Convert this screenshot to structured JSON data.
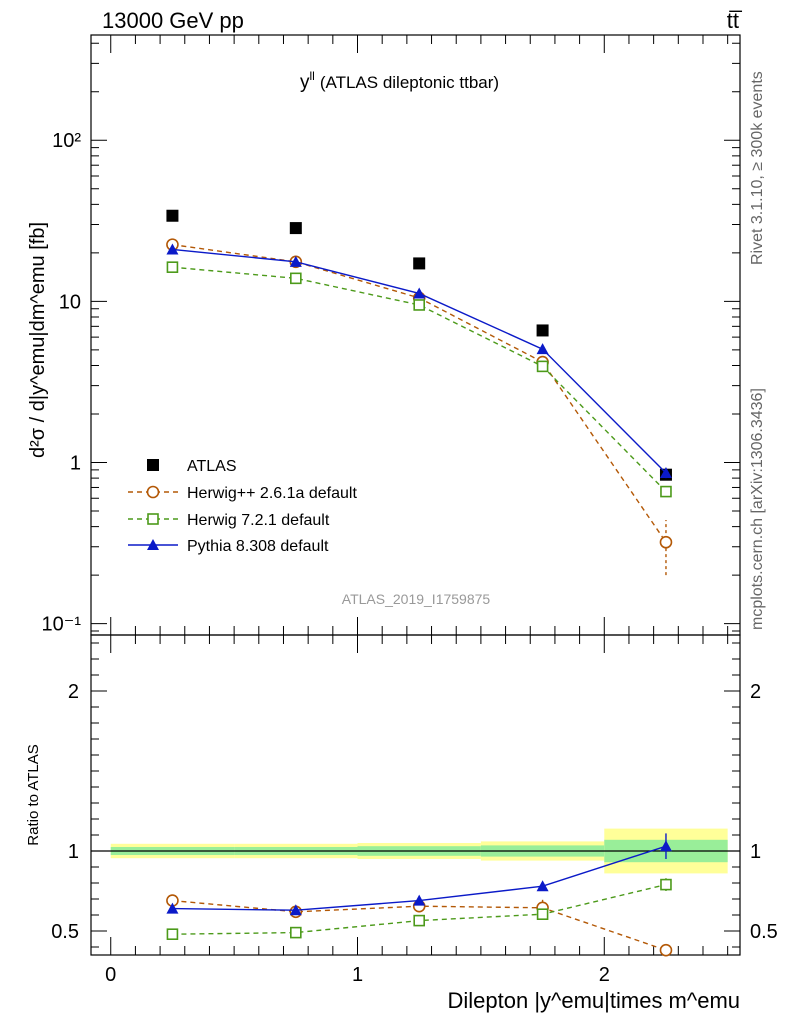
{
  "header": {
    "left_label": "13000 GeV pp",
    "right_label": "tt̅"
  },
  "side_labels": {
    "rivet": "Rivet 3.1.10, ≥ 300k events",
    "mcplots": "mcplots.cern.ch [arXiv:1306.3436]"
  },
  "chart_data": [
    {
      "type": "scatter",
      "title": "y",
      "title_superscript": "ll",
      "title_suffix": "(ATLAS dileptonic ttbar)",
      "ylabel": "d²σ / d|y^emu|dm^emu [fb]",
      "yscale": "log",
      "ylim": [
        0.085,
        450
      ],
      "xlim": [
        -0.08,
        2.55
      ],
      "ytick_labels": [
        "10⁻¹",
        "1",
        "10",
        "10²"
      ],
      "reference_label": "ATLAS_2019_I1759875",
      "legend_position": "bottom-left",
      "x": [
        0.25,
        0.75,
        1.25,
        1.75,
        2.25
      ],
      "series": [
        {
          "name": "ATLAS",
          "color": "#000000",
          "marker": "filled-square",
          "line": "none",
          "values": [
            34,
            28.5,
            17.2,
            6.6,
            0.84
          ]
        },
        {
          "name": "Herwig++ 2.6.1a default",
          "color": "#b35806",
          "marker": "open-circle",
          "line": "dashed",
          "values": [
            22.5,
            17.6,
            10.5,
            4.2,
            0.32
          ],
          "err_low": [
            0.6,
            0.5,
            0.4,
            0.3,
            0.12
          ],
          "err_high": [
            0.6,
            0.5,
            0.4,
            0.3,
            0.12
          ]
        },
        {
          "name": "Herwig 7.2.1 default",
          "color": "#4c9a1a",
          "marker": "open-square",
          "line": "dashed",
          "values": [
            16.3,
            13.9,
            9.5,
            3.95,
            0.66
          ]
        },
        {
          "name": "Pythia 8.308 default",
          "color": "#0b1ac8",
          "marker": "filled-triangle",
          "line": "solid",
          "values": [
            21,
            17.6,
            11.2,
            5.05,
            0.86
          ],
          "err_low": [
            0.3,
            0.3,
            0.2,
            0.1,
            0.06
          ],
          "err_high": [
            0.3,
            0.3,
            0.2,
            0.1,
            0.06
          ]
        }
      ]
    },
    {
      "type": "line",
      "ylabel": "Ratio to ATLAS",
      "xlabel": "Dilepton |y^emu|times m^emu",
      "ylim": [
        0.35,
        2.35
      ],
      "xlim": [
        -0.08,
        2.55
      ],
      "ytick_labels": [
        "0.5",
        "1",
        "2"
      ],
      "xtick_labels": [
        "0",
        "1",
        "2"
      ],
      "x": [
        0.25,
        0.75,
        1.25,
        1.75,
        2.25
      ],
      "bands": [
        {
          "x0": 0,
          "x1": 0.5,
          "stat_low": 0.975,
          "stat_high": 1.025,
          "tot_low": 0.955,
          "tot_high": 1.045
        },
        {
          "x0": 0.5,
          "x1": 1.0,
          "stat_low": 0.975,
          "stat_high": 1.025,
          "tot_low": 0.955,
          "tot_high": 1.045
        },
        {
          "x0": 1.0,
          "x1": 1.5,
          "stat_low": 0.97,
          "stat_high": 1.03,
          "tot_low": 0.95,
          "tot_high": 1.05
        },
        {
          "x0": 1.5,
          "x1": 2.0,
          "stat_low": 0.965,
          "stat_high": 1.035,
          "tot_low": 0.94,
          "tot_high": 1.06
        },
        {
          "x0": 2.0,
          "x1": 2.5,
          "stat_low": 0.93,
          "stat_high": 1.07,
          "tot_low": 0.86,
          "tot_high": 1.14
        }
      ],
      "series": [
        {
          "name": "Herwig++ 2.6.1a default",
          "color": "#b35806",
          "marker": "open-circle",
          "line": "dashed",
          "values": [
            0.69,
            0.62,
            0.655,
            0.645,
            0.38
          ],
          "err": [
            0.02,
            0.02,
            0.03,
            0.05,
            0.0
          ]
        },
        {
          "name": "Herwig 7.2.1 default",
          "color": "#4c9a1a",
          "marker": "open-square",
          "line": "dashed",
          "values": [
            0.48,
            0.49,
            0.565,
            0.605,
            0.79
          ],
          "err": [
            0,
            0,
            0,
            0.02,
            0.04
          ]
        },
        {
          "name": "Pythia 8.308 default",
          "color": "#0b1ac8",
          "marker": "filled-triangle",
          "line": "solid",
          "values": [
            0.64,
            0.63,
            0.69,
            0.78,
            1.03
          ],
          "err": [
            0.01,
            0.02,
            0.01,
            0.02,
            0.08
          ]
        }
      ]
    }
  ]
}
